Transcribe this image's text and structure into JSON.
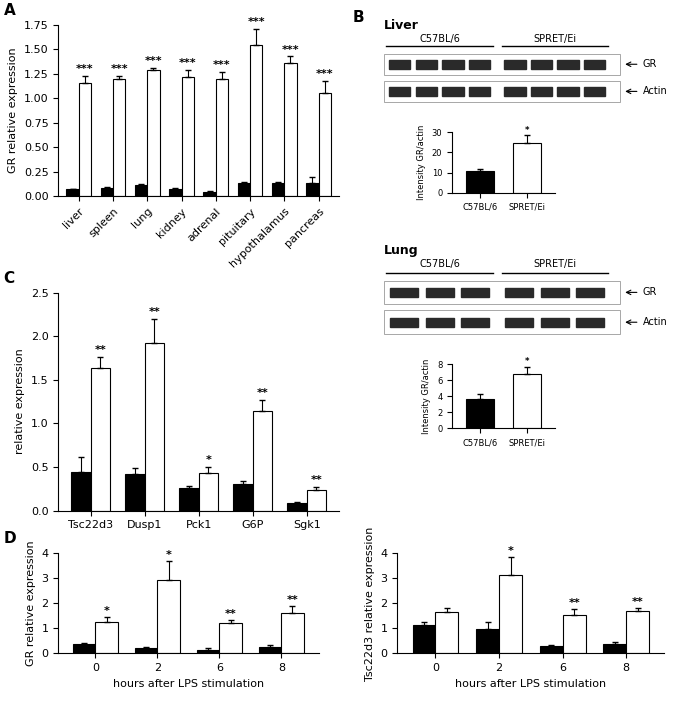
{
  "chart_data": [
    {
      "type": "bar",
      "panel": "A",
      "ylabel": "GR relative expression",
      "categories": [
        "liver",
        "spleen",
        "lung",
        "kidney",
        "adrenal",
        "pituitary",
        "hypothalamus",
        "pancreas"
      ],
      "series": [
        {
          "color": "#000000",
          "values": [
            0.07,
            0.09,
            0.12,
            0.08,
            0.04,
            0.14,
            0.14,
            0.14
          ],
          "errors": [
            0.01,
            0.01,
            0.01,
            0.01,
            0.01,
            0.01,
            0.01,
            0.06
          ]
        },
        {
          "color": "#ffffff",
          "values": [
            1.16,
            1.2,
            1.29,
            1.22,
            1.2,
            1.55,
            1.36,
            1.06
          ],
          "errors": [
            0.07,
            0.03,
            0.02,
            0.07,
            0.07,
            0.16,
            0.07,
            0.12
          ],
          "significance": [
            "***",
            "***",
            "***",
            "***",
            "***",
            "***",
            "***",
            "***"
          ]
        }
      ],
      "ylim": [
        0,
        1.75
      ],
      "yticks": [
        {
          "value": 0,
          "label": "0.00"
        },
        {
          "value": 0.25,
          "label": "0.25"
        },
        {
          "value": 0.5,
          "label": "0.50"
        },
        {
          "value": 0.75,
          "label": "0.75"
        },
        {
          "value": 1,
          "label": "1.00"
        },
        {
          "value": 1.25,
          "label": "1.25"
        },
        {
          "value": 1.5,
          "label": "1.50"
        },
        {
          "value": 1.75,
          "label": "1.75"
        }
      ]
    },
    {
      "type": "blot",
      "panel": "B",
      "title": "Liver",
      "groups": [
        "C57BL/6",
        "SPRET/Ei"
      ],
      "bands": [
        "GR",
        "Actin"
      ]
    },
    {
      "type": "bar",
      "ylabel": "Intensity GR/actin",
      "categories": [
        "C57BL/6",
        "SPRET/Ei"
      ],
      "values": [
        11,
        24.5
      ],
      "errors": [
        1,
        4
      ],
      "colors": [
        "#000000",
        "#ffffff"
      ],
      "significance": [
        null,
        "*"
      ],
      "ylim": [
        0,
        30
      ],
      "yticks": [
        0,
        10,
        20,
        30
      ]
    },
    {
      "type": "blot",
      "title": "Lung",
      "groups": [
        "C57BL/6",
        "SPRET/Ei"
      ],
      "bands": [
        "GR",
        "Actin"
      ]
    },
    {
      "type": "bar",
      "ylabel": "Intensity GR/actin",
      "categories": [
        "C57BL/6",
        "SPRET/Ei"
      ],
      "values": [
        3.7,
        6.8
      ],
      "errors": [
        0.6,
        0.9
      ],
      "colors": [
        "#000000",
        "#ffffff"
      ],
      "significance": [
        null,
        "*"
      ],
      "ylim": [
        0,
        8
      ],
      "yticks": [
        0,
        2,
        4,
        6,
        8
      ]
    },
    {
      "type": "bar",
      "panel": "C",
      "ylabel": "relative expression",
      "categories": [
        "Tsc22d3",
        "Dusp1",
        "Pck1",
        "G6P",
        "Sgk1"
      ],
      "series": [
        {
          "color": "#000000",
          "values": [
            0.44,
            0.42,
            0.26,
            0.31,
            0.09
          ],
          "errors": [
            0.17,
            0.07,
            0.02,
            0.03,
            0.01
          ]
        },
        {
          "color": "#ffffff",
          "values": [
            1.64,
            1.92,
            0.43,
            1.14,
            0.24
          ],
          "errors": [
            0.12,
            0.28,
            0.07,
            0.13,
            0.03
          ],
          "significance": [
            "**",
            "**",
            "*",
            "**",
            "**"
          ]
        }
      ],
      "ylim": [
        0,
        2.5
      ],
      "yticks": [
        0.0,
        0.5,
        1.0,
        1.5,
        2.0,
        2.5
      ]
    },
    {
      "type": "bar",
      "panel": "D",
      "ylabel": "GR relative expression",
      "xlabel": "hours after LPS stimulation",
      "categories": [
        "0",
        "2",
        "6",
        "8"
      ],
      "series": [
        {
          "color": "#000000",
          "values": [
            0.37,
            0.22,
            0.14,
            0.27
          ],
          "errors": [
            0.03,
            0.05,
            0.06,
            0.05
          ]
        },
        {
          "color": "#ffffff",
          "values": [
            1.27,
            2.93,
            1.2,
            1.62
          ],
          "errors": [
            0.19,
            0.78,
            0.13,
            0.28
          ],
          "significance": [
            "*",
            "*",
            "**",
            "**"
          ]
        }
      ],
      "ylim": [
        0,
        4
      ],
      "yticks": [
        0,
        1,
        2,
        3,
        4
      ]
    },
    {
      "type": "bar",
      "ylabel": "Tsc22d3 relative expression",
      "xlabel": "hours after LPS stimulation",
      "categories": [
        "0",
        "2",
        "6",
        "8"
      ],
      "series": [
        {
          "color": "#000000",
          "values": [
            1.15,
            0.97,
            0.28,
            0.39
          ],
          "errors": [
            0.1,
            0.27,
            0.04,
            0.06
          ]
        },
        {
          "color": "#ffffff",
          "values": [
            1.66,
            3.13,
            1.52,
            1.69
          ],
          "errors": [
            0.16,
            0.72,
            0.26,
            0.14
          ],
          "significance": [
            null,
            "*",
            "**",
            "**"
          ]
        }
      ],
      "ylim": [
        0,
        4
      ],
      "yticks": [
        0,
        1,
        2,
        3,
        4
      ]
    }
  ]
}
